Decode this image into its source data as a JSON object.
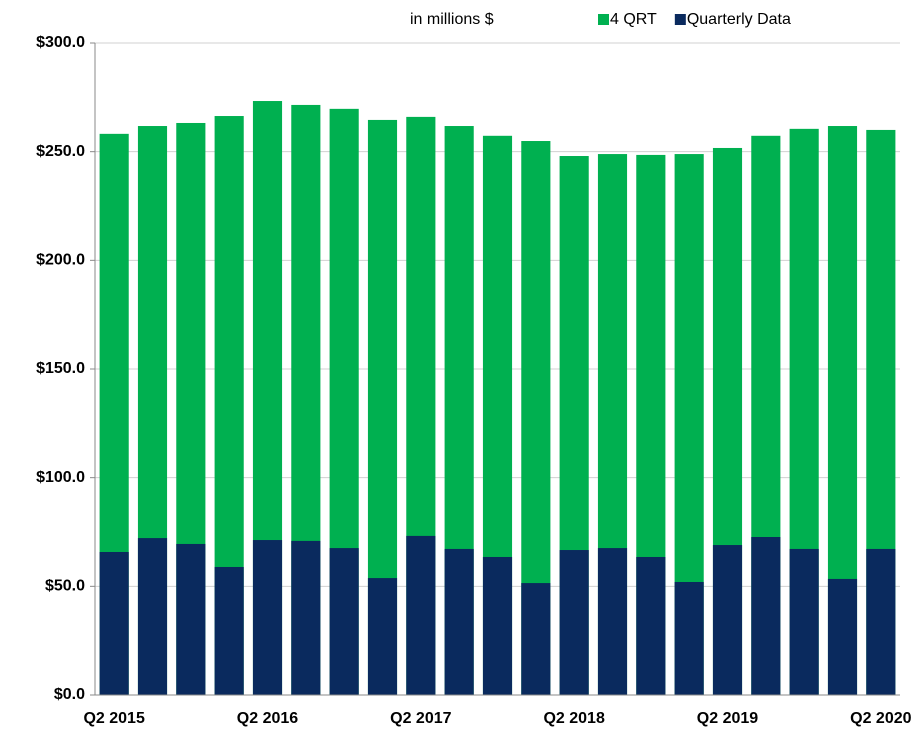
{
  "chart_data": {
    "type": "bar",
    "annotation": "in millions $",
    "categories": [
      "Q2 2015",
      null,
      null,
      null,
      "Q2 2016",
      null,
      null,
      null,
      "Q2 2017",
      null,
      null,
      null,
      "Q2 2018",
      null,
      null,
      null,
      "Q2 2019",
      null,
      null,
      null,
      "Q2 2020"
    ],
    "series": [
      {
        "name": "4 QRT",
        "color": "#00b050",
        "values": [
          258.2,
          261.8,
          263.2,
          266.4,
          273.3,
          271.5,
          269.7,
          264.6,
          266.0,
          261.8,
          257.3,
          254.9,
          248.0,
          248.9,
          248.5,
          248.9,
          251.7,
          257.3,
          260.5,
          261.8,
          260.0
        ]
      },
      {
        "name": "Quarterly Data",
        "color": "#0a2a5e",
        "values": [
          65.8,
          72.2,
          69.5,
          58.9,
          71.3,
          70.9,
          67.6,
          53.8,
          73.2,
          67.2,
          63.5,
          51.5,
          66.7,
          67.6,
          63.5,
          52.0,
          69.0,
          72.7,
          67.2,
          53.4,
          67.2
        ]
      }
    ],
    "ylim": [
      0,
      300
    ],
    "yticks": [
      {
        "value": 0,
        "label": "$0.0"
      },
      {
        "value": 50,
        "label": "$50.0"
      },
      {
        "value": 100,
        "label": "$100.0"
      },
      {
        "value": 150,
        "label": "$150.0"
      },
      {
        "value": 200,
        "label": "$200.0"
      },
      {
        "value": 250,
        "label": "$250.0"
      },
      {
        "value": 300,
        "label": "$300.0"
      }
    ],
    "grid": true
  }
}
